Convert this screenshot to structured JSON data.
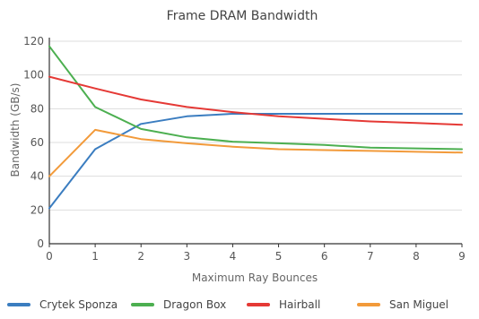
{
  "chart_data": {
    "type": "line",
    "title": "Frame DRAM Bandwidth",
    "xlabel": "Maximum Ray Bounces",
    "ylabel": "Bandwidth (GB/s)",
    "x": [
      0,
      1,
      2,
      3,
      4,
      5,
      6,
      7,
      8,
      9
    ],
    "xlim": [
      0,
      9
    ],
    "ylim": [
      0,
      120
    ],
    "yticks": [
      0,
      20,
      40,
      60,
      80,
      100,
      120
    ],
    "xticks": [
      0,
      1,
      2,
      3,
      4,
      5,
      6,
      7,
      8,
      9
    ],
    "grid": "horizontal",
    "legend_position": "bottom",
    "series": [
      {
        "name": "Crytek Sponza",
        "color": "#3b7dc0",
        "values": [
          21,
          56,
          71,
          75.5,
          77,
          77,
          77,
          77,
          77,
          77
        ]
      },
      {
        "name": "Dragon Box",
        "color": "#4caf50",
        "values": [
          117,
          81,
          68,
          63,
          60.5,
          59.5,
          58.5,
          57,
          56.5,
          56
        ]
      },
      {
        "name": "Hairball",
        "color": "#e53935",
        "values": [
          99,
          92,
          85.5,
          81,
          78,
          75.5,
          74,
          72.5,
          71.5,
          70.5
        ]
      },
      {
        "name": "San Miguel",
        "color": "#f29a3a",
        "values": [
          40,
          67.5,
          62,
          59.5,
          57.5,
          56,
          55.5,
          55,
          54.5,
          54
        ]
      }
    ]
  }
}
